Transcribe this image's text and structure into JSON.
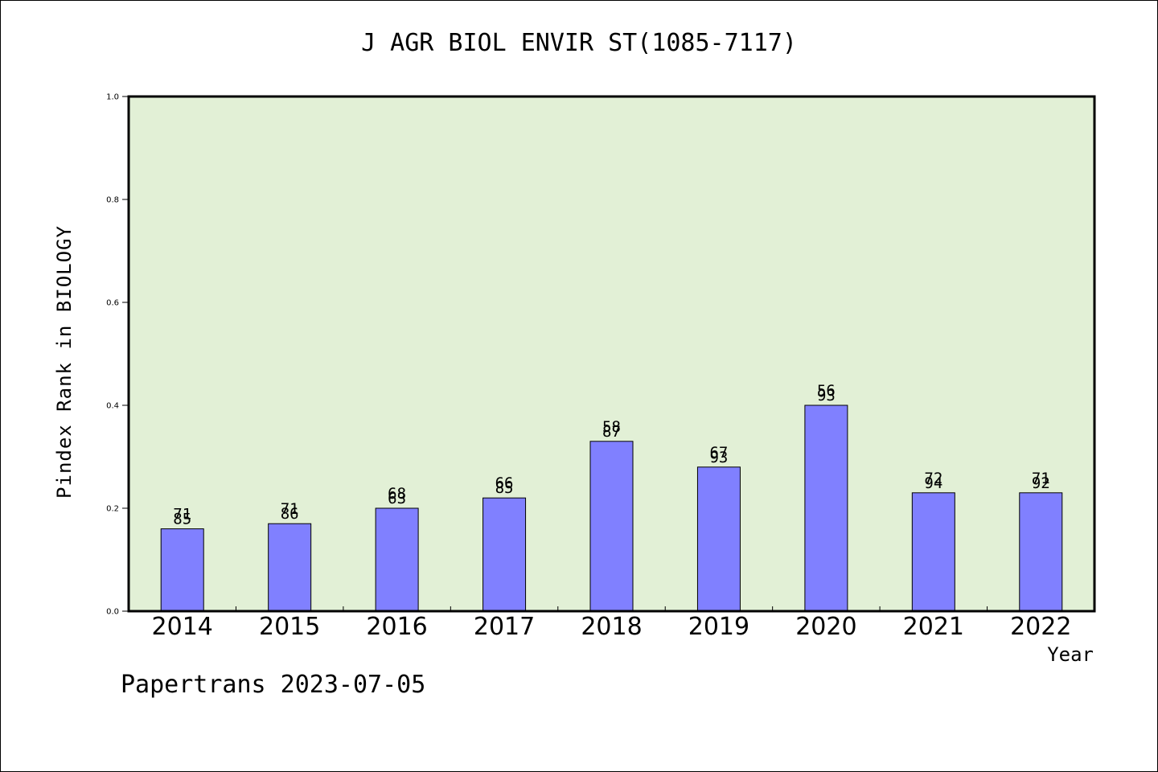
{
  "chart_data": {
    "type": "bar",
    "title": "J AGR BIOL ENVIR ST(1085-7117)",
    "xlabel": "Year",
    "ylabel": "Pindex Rank in BIOLOGY",
    "ylim": [
      0,
      1.0
    ],
    "yticks": [
      "0.0",
      "0.2",
      "0.4",
      "0.6",
      "0.8",
      "1.0"
    ],
    "categories": [
      "2014",
      "2015",
      "2016",
      "2017",
      "2018",
      "2019",
      "2020",
      "2021",
      "2022"
    ],
    "values": [
      0.16,
      0.17,
      0.2,
      0.22,
      0.33,
      0.28,
      0.4,
      0.23,
      0.23
    ],
    "labels_top": [
      "71",
      "71",
      "68",
      "66",
      "58",
      "67",
      "56",
      "72",
      "71"
    ],
    "labels_bottom": [
      "85",
      "86",
      "63",
      "85",
      "87",
      "93",
      "93",
      "94",
      "92"
    ],
    "colors": {
      "plot_bg": "#e2f0d6",
      "bar": "#8080ff",
      "axis": "#000000"
    },
    "grid": false,
    "footer": "Papertrans 2023-07-05"
  }
}
